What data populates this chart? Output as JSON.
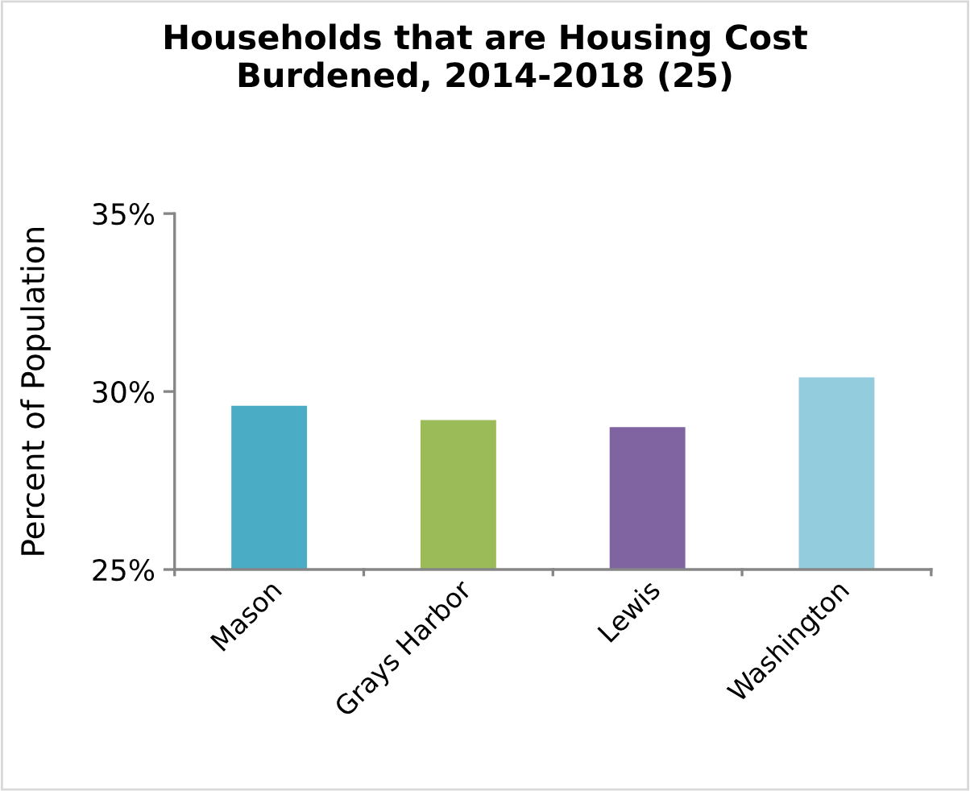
{
  "chart_data": {
    "type": "bar",
    "title": "Households that are Housing Cost\nBurdened, 2014-2018 (25)",
    "ylabel": "Percent of Population",
    "categories": [
      "Mason",
      "Grays Harbor",
      "Lewis",
      "Washington"
    ],
    "values": [
      29.6,
      29.2,
      29.0,
      30.4
    ],
    "colors": [
      "#4bacc6",
      "#9bbb59",
      "#8064a2",
      "#93cddd"
    ],
    "ylim": [
      25,
      35
    ],
    "yticks": [
      {
        "value": 25,
        "label": "25%"
      },
      {
        "value": 30,
        "label": "30%"
      },
      {
        "value": 35,
        "label": "35%"
      }
    ],
    "grid": false,
    "legend": false
  }
}
